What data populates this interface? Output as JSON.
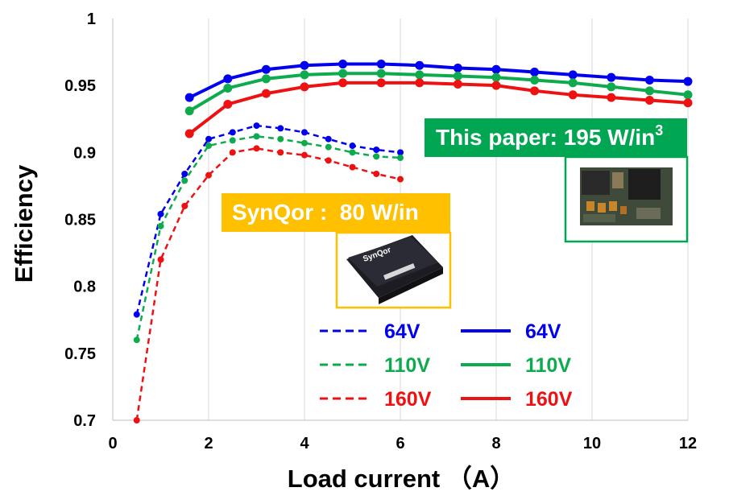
{
  "chart_data": {
    "type": "line",
    "xlabel": "Load current （A）",
    "ylabel": "Efficiency",
    "xlim": [
      0,
      12
    ],
    "ylim": [
      0.7,
      1.0
    ],
    "x_ticks": [
      "0",
      "2",
      "4",
      "6",
      "8",
      "10",
      "12"
    ],
    "y_ticks": [
      "0.7",
      "0.75",
      "0.8",
      "0.85",
      "0.9",
      "0.95",
      "1"
    ],
    "grid": {
      "vertical": true,
      "horizontal": false
    },
    "series": [
      {
        "name": "64V",
        "style": "dashed",
        "color": "#0000ee",
        "points": [
          [
            0.5,
            0.779
          ],
          [
            1.0,
            0.854
          ],
          [
            1.5,
            0.884
          ],
          [
            2.0,
            0.91
          ],
          [
            2.5,
            0.915
          ],
          [
            3.0,
            0.92
          ],
          [
            3.5,
            0.918
          ],
          [
            4.0,
            0.915
          ],
          [
            4.5,
            0.91
          ],
          [
            5.0,
            0.905
          ],
          [
            5.5,
            0.902
          ],
          [
            6.0,
            0.9
          ]
        ]
      },
      {
        "name": "110V",
        "style": "dashed",
        "color": "#0eab4e",
        "points": [
          [
            0.5,
            0.76
          ],
          [
            1.0,
            0.845
          ],
          [
            1.5,
            0.879
          ],
          [
            2.0,
            0.905
          ],
          [
            2.5,
            0.909
          ],
          [
            3.0,
            0.912
          ],
          [
            3.5,
            0.91
          ],
          [
            4.0,
            0.907
          ],
          [
            4.5,
            0.904
          ],
          [
            5.0,
            0.9
          ],
          [
            5.5,
            0.897
          ],
          [
            6.0,
            0.896
          ]
        ]
      },
      {
        "name": "160V",
        "style": "dashed",
        "color": "#ee1111",
        "points": [
          [
            0.5,
            0.7
          ],
          [
            1.0,
            0.82
          ],
          [
            1.5,
            0.86
          ],
          [
            2.0,
            0.883
          ],
          [
            2.5,
            0.9
          ],
          [
            3.0,
            0.903
          ],
          [
            3.5,
            0.9
          ],
          [
            4.0,
            0.898
          ],
          [
            4.5,
            0.894
          ],
          [
            5.0,
            0.889
          ],
          [
            5.5,
            0.884
          ],
          [
            6.0,
            0.88
          ]
        ]
      },
      {
        "name": "64V",
        "style": "solid",
        "color": "#0000ee",
        "points": [
          [
            1.6,
            0.941
          ],
          [
            2.4,
            0.955
          ],
          [
            3.2,
            0.962
          ],
          [
            4.0,
            0.965
          ],
          [
            4.8,
            0.966
          ],
          [
            5.6,
            0.966
          ],
          [
            6.4,
            0.965
          ],
          [
            7.2,
            0.963
          ],
          [
            8.0,
            0.962
          ],
          [
            8.8,
            0.96
          ],
          [
            9.6,
            0.958
          ],
          [
            10.4,
            0.956
          ],
          [
            11.2,
            0.954
          ],
          [
            12.0,
            0.953
          ]
        ]
      },
      {
        "name": "110V",
        "style": "solid",
        "color": "#0eab4e",
        "points": [
          [
            1.6,
            0.931
          ],
          [
            2.4,
            0.948
          ],
          [
            3.2,
            0.955
          ],
          [
            4.0,
            0.958
          ],
          [
            4.8,
            0.959
          ],
          [
            5.6,
            0.959
          ],
          [
            6.4,
            0.958
          ],
          [
            7.2,
            0.957
          ],
          [
            8.0,
            0.956
          ],
          [
            8.8,
            0.954
          ],
          [
            9.6,
            0.952
          ],
          [
            10.4,
            0.949
          ],
          [
            11.2,
            0.946
          ],
          [
            12.0,
            0.943
          ]
        ]
      },
      {
        "name": "160V",
        "style": "solid",
        "color": "#ee1111",
        "points": [
          [
            1.6,
            0.914
          ],
          [
            2.4,
            0.936
          ],
          [
            3.2,
            0.944
          ],
          [
            4.0,
            0.949
          ],
          [
            4.8,
            0.952
          ],
          [
            5.6,
            0.952
          ],
          [
            6.4,
            0.952
          ],
          [
            7.2,
            0.951
          ],
          [
            8.0,
            0.95
          ],
          [
            8.8,
            0.946
          ],
          [
            9.6,
            0.943
          ],
          [
            10.4,
            0.941
          ],
          [
            11.2,
            0.939
          ],
          [
            12.0,
            0.937
          ]
        ]
      }
    ],
    "legend": {
      "placement": "bottom-center",
      "columns": [
        {
          "style": "dashed",
          "entries": [
            "64V",
            "110V",
            "160V"
          ]
        },
        {
          "style": "solid",
          "entries": [
            "64V",
            "110V",
            "160V"
          ]
        }
      ]
    },
    "annotations": {
      "synqor": {
        "text": "SynQor :  80 W/in",
        "color": "#ffc000",
        "image_label": "SynQor"
      },
      "this_paper": {
        "text": "This paper: 195 W/in",
        "superscript": "3",
        "color": "#00a651"
      }
    }
  }
}
